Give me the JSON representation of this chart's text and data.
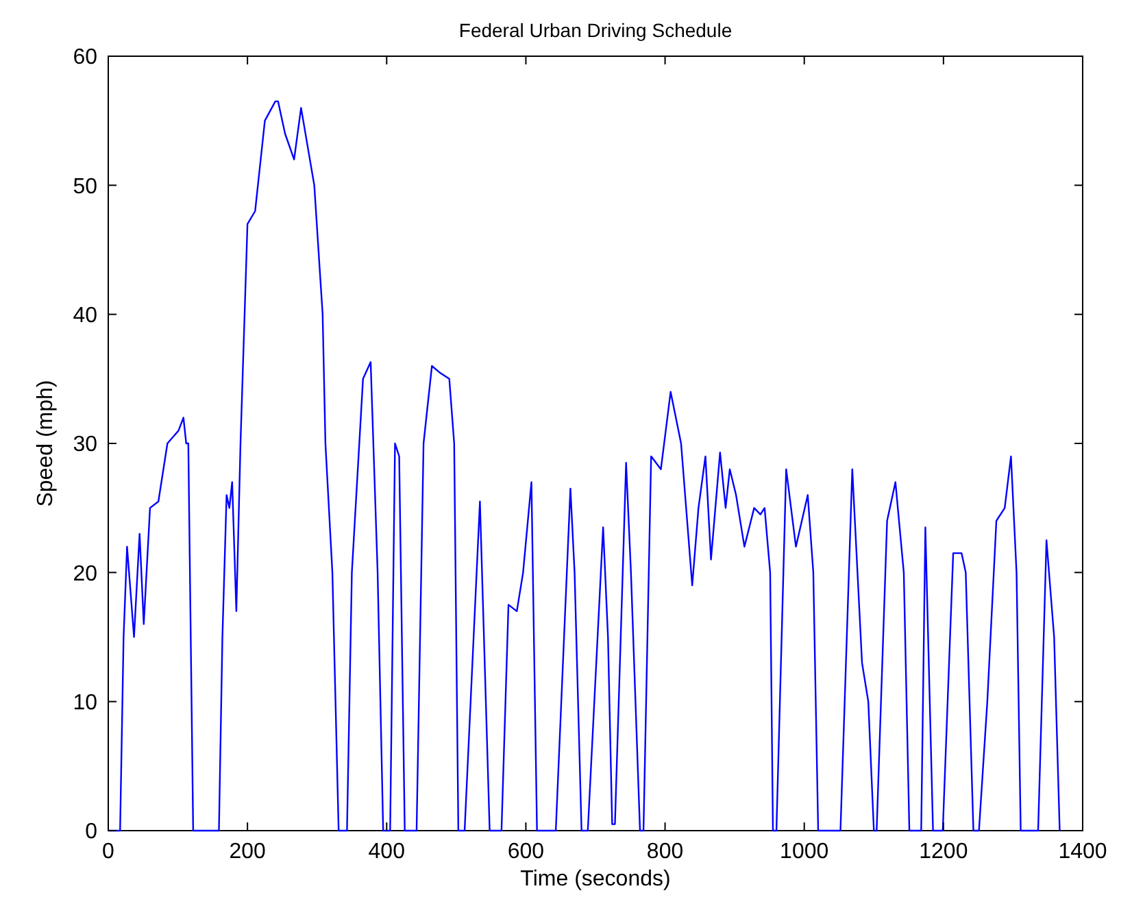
{
  "chart_data": {
    "type": "line",
    "title": "Federal Urban Driving Schedule",
    "xlabel": "Time (seconds)",
    "ylabel": "Speed (mph)",
    "xlim": [
      0,
      1400
    ],
    "ylim": [
      0,
      60
    ],
    "xticks": [
      0,
      200,
      400,
      600,
      800,
      1000,
      1200,
      1400
    ],
    "yticks": [
      0,
      10,
      20,
      30,
      40,
      50,
      60
    ],
    "grid": false,
    "marker": "none",
    "line_style": "solid",
    "series": [
      {
        "color": "#0000ff",
        "x": [
          0,
          17,
          22,
          27,
          37,
          45,
          51,
          60,
          72,
          85,
          101,
          108,
          112,
          115,
          122,
          159,
          164,
          170,
          174,
          178,
          184,
          190,
          200,
          211,
          225,
          240,
          244,
          254,
          267,
          277,
          296,
          308,
          312,
          322,
          331,
          343,
          350,
          366,
          377,
          387,
          395,
          405,
          412,
          418,
          426,
          443,
          453,
          465,
          476,
          490,
          497,
          503,
          512,
          534,
          548,
          565,
          575,
          587,
          596,
          608,
          616,
          643,
          664,
          670,
          680,
          689,
          711,
          718,
          724,
          728,
          744,
          751,
          764,
          769,
          780,
          794,
          808,
          823,
          839,
          848,
          858,
          866,
          879,
          887,
          893,
          902,
          914,
          928,
          937,
          943,
          951,
          955,
          960,
          974,
          988,
          1005,
          1013,
          1020,
          1052,
          1069,
          1083,
          1092,
          1100,
          1104,
          1119,
          1131,
          1143,
          1151,
          1168,
          1174,
          1185,
          1199,
          1214,
          1226,
          1232,
          1243,
          1251,
          1263,
          1276,
          1288,
          1297,
          1305,
          1311,
          1336,
          1348,
          1359,
          1367
        ],
        "values": [
          0,
          0,
          15,
          22,
          15,
          23,
          16,
          25,
          25.5,
          30,
          31,
          32,
          30,
          30,
          0,
          0,
          15,
          26,
          25,
          27,
          17,
          30,
          47,
          48,
          55,
          56.5,
          56.5,
          54,
          52,
          56,
          50,
          40,
          30,
          20,
          0,
          0,
          20,
          35,
          36.3,
          20,
          0,
          0,
          30,
          29,
          0,
          0,
          30,
          36,
          35.5,
          35,
          30,
          0,
          0,
          25.5,
          0,
          0,
          17.5,
          17,
          20,
          27,
          0,
          0,
          26.5,
          20,
          0,
          0,
          23.5,
          15,
          0.5,
          0.5,
          28.5,
          20,
          0,
          0,
          29,
          28,
          34,
          30,
          19,
          25,
          29,
          21,
          29.3,
          25,
          28,
          26,
          22,
          25,
          24.5,
          25,
          20,
          0,
          0,
          28,
          22,
          26,
          20,
          0,
          0,
          28,
          13,
          10,
          0,
          0,
          24,
          27,
          20,
          0,
          0,
          23.5,
          0,
          0,
          21.5,
          21.5,
          20,
          0,
          0,
          10,
          24,
          25,
          29,
          20,
          0,
          0,
          22.5,
          15,
          0
        ]
      }
    ]
  }
}
